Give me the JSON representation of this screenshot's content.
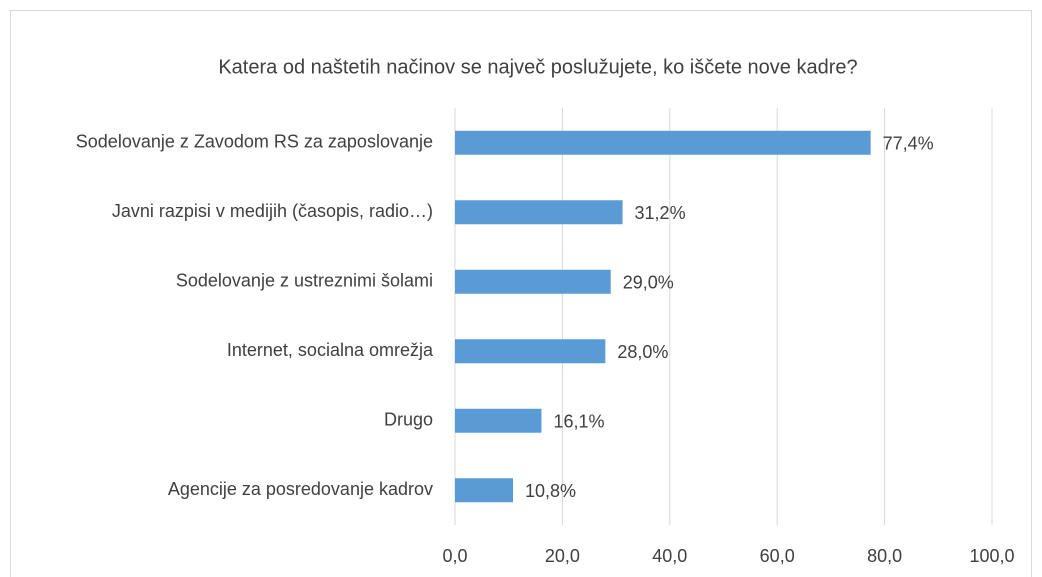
{
  "chart_data": {
    "type": "bar",
    "orientation": "horizontal",
    "title": "Katera od naštetih načinov se največ poslužujete, ko iščete nove kadre?",
    "categories": [
      "Sodelovanje z Zavodom RS za zaposlovanje",
      "Javni razpisi v medijih (časopis, radio…)",
      "Sodelovanje z ustreznimi šolami",
      "Internet, socialna omrežja",
      "Drugo",
      "Agencije za posredovanje kadrov"
    ],
    "values": [
      77.4,
      31.2,
      29.0,
      28.0,
      16.1,
      10.8
    ],
    "value_labels": [
      "77,4%",
      "31,2%",
      "29,0%",
      "28,0%",
      "16,1%",
      "10,8%"
    ],
    "color": "#5b9bd5",
    "xlim": [
      0,
      100
    ],
    "xticks": [
      {
        "value": 0,
        "label": "0,0"
      },
      {
        "value": 20,
        "label": "20,0"
      },
      {
        "value": 40,
        "label": "40,0"
      },
      {
        "value": 60,
        "label": "60,0"
      },
      {
        "value": 80,
        "label": "80,0"
      },
      {
        "value": 100,
        "label": "100,0"
      }
    ],
    "grid": true
  }
}
